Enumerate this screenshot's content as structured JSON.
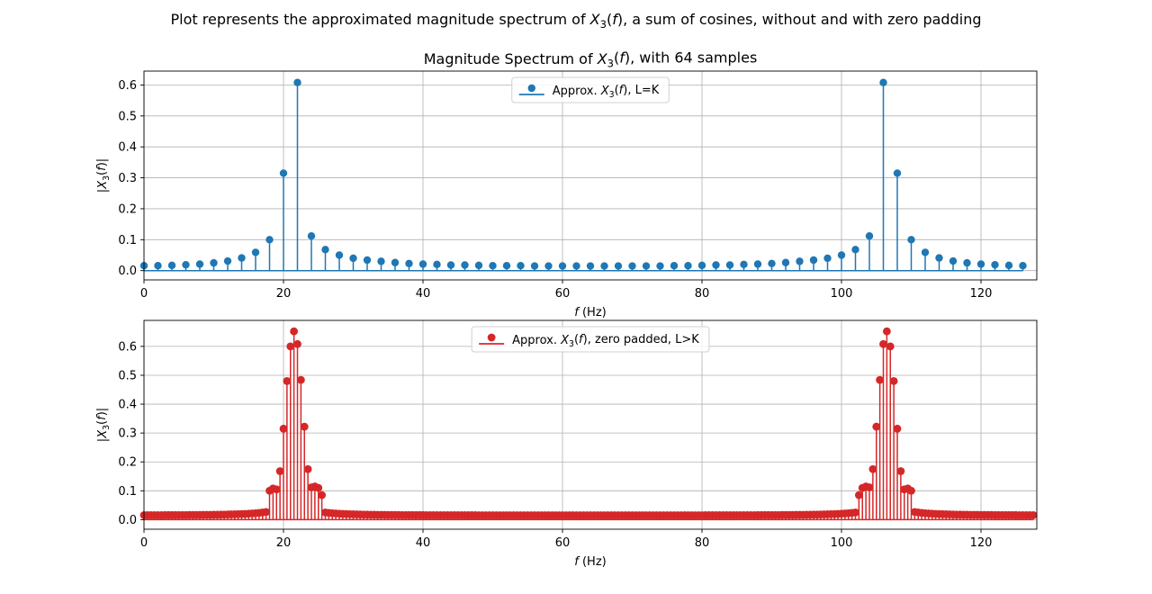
{
  "figure": {
    "title": "Plot represents the approximated magnitude spectrum of X₃(f), a sum of cosines, without and with zero padding"
  },
  "chart_data": [
    {
      "type": "stem",
      "title": "Magnitude Spectrum of X₃(f), with 64 samples",
      "xlabel": "f (Hz)",
      "ylabel": "|X₃(f)|",
      "xlim": [
        0,
        128
      ],
      "ylim": [
        -0.03,
        0.645
      ],
      "xticks": [
        0,
        20,
        40,
        60,
        80,
        100,
        120
      ],
      "yticks": [
        0.0,
        0.1,
        0.2,
        0.3,
        0.4,
        0.5,
        0.6
      ],
      "grid": true,
      "legend": "upper center",
      "color": "#1f77b4",
      "series": [
        {
          "name": "Approx. X₃(f), L=K",
          "x": [
            0,
            2,
            4,
            6,
            8,
            10,
            12,
            14,
            16,
            18,
            20,
            22,
            24,
            26,
            28,
            30,
            32,
            34,
            36,
            38,
            40,
            42,
            44,
            46,
            48,
            50,
            52,
            54,
            56,
            58,
            60,
            62,
            64,
            66,
            68,
            70,
            72,
            74,
            76,
            78,
            80,
            82,
            84,
            86,
            88,
            90,
            92,
            94,
            96,
            98,
            100,
            102,
            104,
            106,
            108,
            110,
            112,
            114,
            116,
            118,
            120,
            122,
            124,
            126
          ],
          "y": [
            0.016,
            0.016,
            0.017,
            0.019,
            0.021,
            0.025,
            0.031,
            0.041,
            0.059,
            0.1,
            0.315,
            0.608,
            0.112,
            0.068,
            0.05,
            0.04,
            0.034,
            0.03,
            0.026,
            0.023,
            0.021,
            0.02,
            0.018,
            0.018,
            0.017,
            0.016,
            0.016,
            0.016,
            0.015,
            0.015,
            0.015,
            0.015,
            0.015,
            0.015,
            0.015,
            0.015,
            0.015,
            0.015,
            0.016,
            0.016,
            0.017,
            0.018,
            0.018,
            0.02,
            0.021,
            0.023,
            0.026,
            0.03,
            0.034,
            0.04,
            0.05,
            0.068,
            0.112,
            0.608,
            0.315,
            0.1,
            0.059,
            0.041,
            0.031,
            0.025,
            0.021,
            0.019,
            0.017,
            0.016
          ]
        }
      ]
    },
    {
      "type": "stem",
      "title": "",
      "xlabel": "f (Hz)",
      "ylabel": "|X₃(f)|",
      "xlim": [
        0,
        128
      ],
      "ylim": [
        -0.033,
        0.69
      ],
      "xticks": [
        0,
        20,
        40,
        60,
        80,
        100,
        120
      ],
      "yticks": [
        0.0,
        0.1,
        0.2,
        0.3,
        0.4,
        0.5,
        0.6
      ],
      "grid": true,
      "legend": "upper center",
      "color": "#d62728",
      "series": [
        {
          "name": "Approx. X₃(f), zero padded, L>K",
          "x_step": 0.5,
          "points": 256,
          "peaks": [
            {
              "x": 18.0,
              "y": 0.1
            },
            {
              "x": 18.5,
              "y": 0.108
            },
            {
              "x": 19.0,
              "y": 0.105
            },
            {
              "x": 19.5,
              "y": 0.168
            },
            {
              "x": 20.0,
              "y": 0.315
            },
            {
              "x": 20.5,
              "y": 0.48
            },
            {
              "x": 21.0,
              "y": 0.6
            },
            {
              "x": 21.5,
              "y": 0.652
            },
            {
              "x": 22.0,
              "y": 0.608
            },
            {
              "x": 22.5,
              "y": 0.484
            },
            {
              "x": 23.0,
              "y": 0.322
            },
            {
              "x": 23.5,
              "y": 0.175
            },
            {
              "x": 24.0,
              "y": 0.112
            },
            {
              "x": 24.5,
              "y": 0.115
            },
            {
              "x": 25.0,
              "y": 0.11
            },
            {
              "x": 25.5,
              "y": 0.085
            },
            {
              "x": 104.0,
              "y": 0.112
            },
            {
              "x": 104.5,
              "y": 0.175
            },
            {
              "x": 105.0,
              "y": 0.322
            },
            {
              "x": 105.5,
              "y": 0.484
            },
            {
              "x": 106.0,
              "y": 0.608
            },
            {
              "x": 106.5,
              "y": 0.652
            },
            {
              "x": 107.0,
              "y": 0.6
            },
            {
              "x": 107.5,
              "y": 0.48
            },
            {
              "x": 108.0,
              "y": 0.315
            },
            {
              "x": 108.5,
              "y": 0.168
            },
            {
              "x": 109.0,
              "y": 0.105
            },
            {
              "x": 109.5,
              "y": 0.108
            },
            {
              "x": 110.0,
              "y": 0.1
            },
            {
              "x": 102.5,
              "y": 0.085
            },
            {
              "x": 103.0,
              "y": 0.11
            },
            {
              "x": 103.5,
              "y": 0.115
            }
          ]
        }
      ]
    }
  ]
}
